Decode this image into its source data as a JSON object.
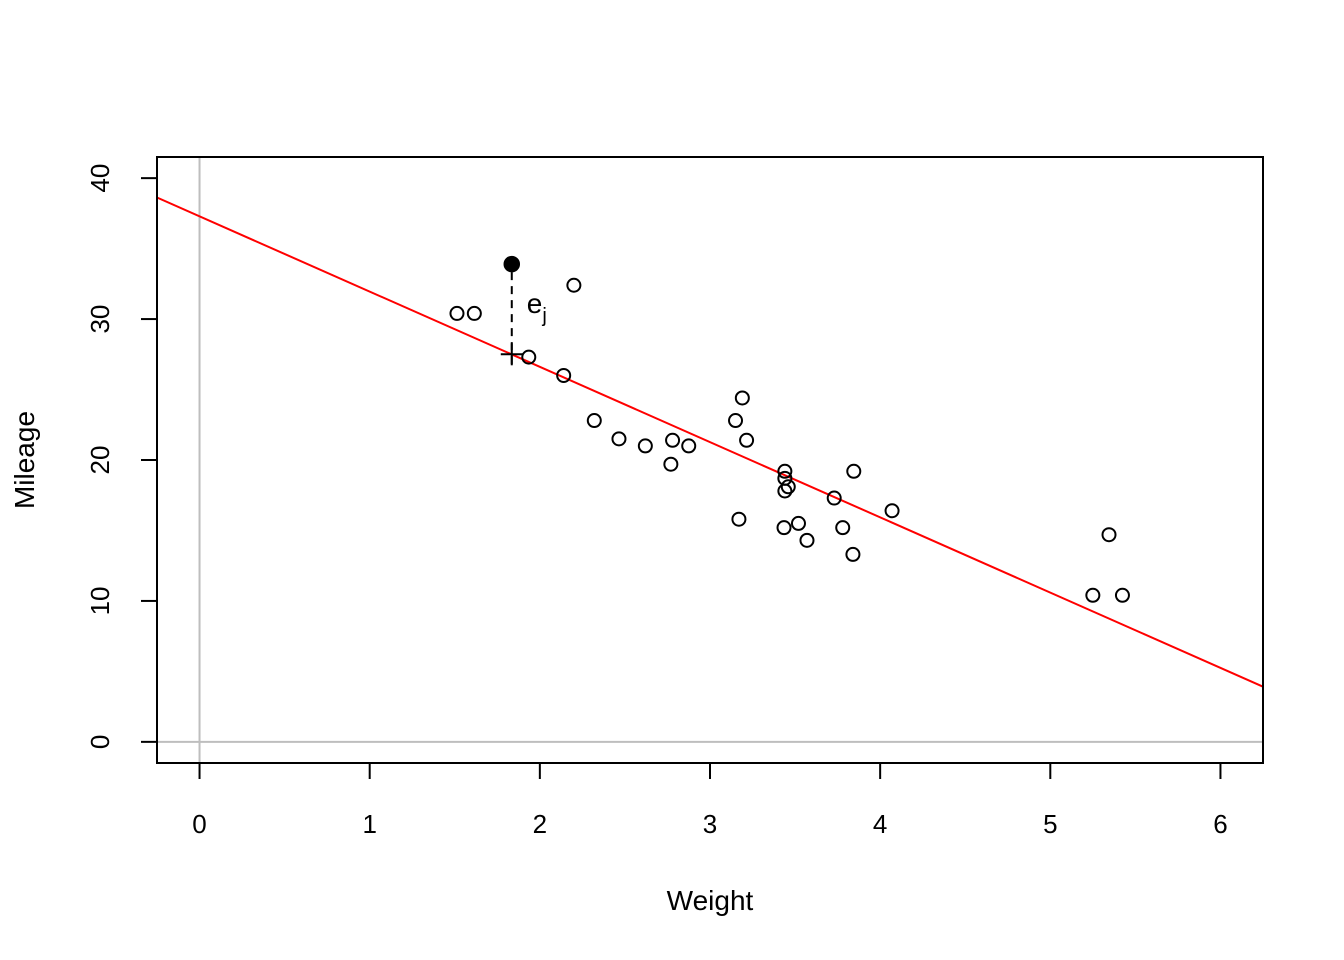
{
  "chart_data": {
    "type": "scatter",
    "title": "",
    "xlabel": "Weight",
    "ylabel": "Mileage",
    "xlim": [
      -0.25,
      6.25
    ],
    "ylim": [
      -1.5,
      41.5
    ],
    "x_ticks": [
      0,
      1,
      2,
      3,
      4,
      5,
      6
    ],
    "x_tick_labels": [
      "0",
      "1",
      "2",
      "3",
      "4",
      "5",
      "6"
    ],
    "y_ticks": [
      0,
      10,
      20,
      30,
      40
    ],
    "y_tick_labels": [
      "0",
      "10",
      "20",
      "30",
      "40"
    ],
    "reference_lines": {
      "x": 0,
      "y": 0,
      "color": "#bebebe"
    },
    "regression_line": {
      "intercept": 37.29,
      "slope": -5.34,
      "color": "#ff0000"
    },
    "points": [
      {
        "x": 2.62,
        "y": 21.0
      },
      {
        "x": 2.875,
        "y": 21.0
      },
      {
        "x": 2.32,
        "y": 22.8
      },
      {
        "x": 3.215,
        "y": 21.4
      },
      {
        "x": 3.44,
        "y": 18.7
      },
      {
        "x": 3.46,
        "y": 18.1
      },
      {
        "x": 3.57,
        "y": 14.3
      },
      {
        "x": 3.19,
        "y": 24.4
      },
      {
        "x": 3.15,
        "y": 22.8
      },
      {
        "x": 3.44,
        "y": 19.2
      },
      {
        "x": 3.44,
        "y": 17.8
      },
      {
        "x": 4.07,
        "y": 16.4
      },
      {
        "x": 3.73,
        "y": 17.3
      },
      {
        "x": 3.78,
        "y": 15.2
      },
      {
        "x": 5.25,
        "y": 10.4
      },
      {
        "x": 5.424,
        "y": 10.4
      },
      {
        "x": 5.345,
        "y": 14.7
      },
      {
        "x": 2.2,
        "y": 32.4
      },
      {
        "x": 1.615,
        "y": 30.4
      },
      {
        "x": 2.465,
        "y": 21.5
      },
      {
        "x": 3.52,
        "y": 15.5
      },
      {
        "x": 3.435,
        "y": 15.2
      },
      {
        "x": 3.84,
        "y": 13.3
      },
      {
        "x": 3.845,
        "y": 19.2
      },
      {
        "x": 1.935,
        "y": 27.3
      },
      {
        "x": 2.14,
        "y": 26.0
      },
      {
        "x": 1.513,
        "y": 30.4
      },
      {
        "x": 3.17,
        "y": 15.8
      },
      {
        "x": 2.77,
        "y": 19.7
      },
      {
        "x": 2.78,
        "y": 21.4
      }
    ],
    "highlighted_point": {
      "x": 1.835,
      "y": 33.9,
      "fitted_y": 27.5
    },
    "residual_label": {
      "main": "e",
      "subscript": "j"
    },
    "colors": {
      "points": "#000000",
      "fit": "#ff0000",
      "reference": "#bebebe"
    }
  }
}
